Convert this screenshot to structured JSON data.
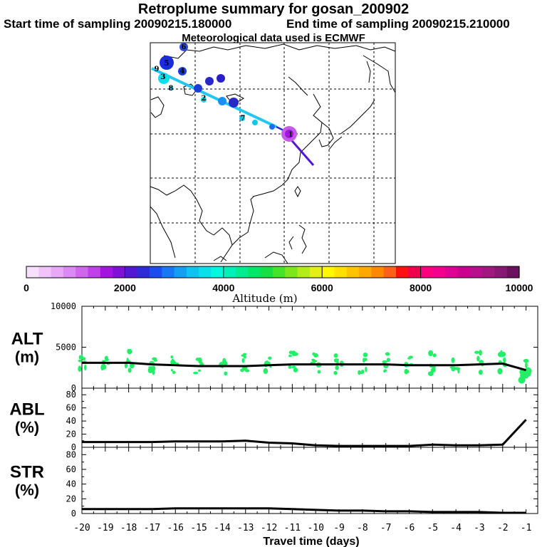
{
  "header": {
    "title": "Retroplume summary for gosan_200902",
    "start_time": "Start time of sampling 20090215.180000",
    "end_time": "End time of sampling 20090215.210000",
    "met_data": "Meteorological data used is ECMWF"
  },
  "colorbar": {
    "colors": [
      "#f7e0fb",
      "#f0c4fa",
      "#e8a7f7",
      "#dc8af3",
      "#d066ee",
      "#c040ea",
      "#a414e0",
      "#8010d8",
      "#5218d4",
      "#2c2cd8",
      "#1a4cf0",
      "#1678f4",
      "#13a0f4",
      "#10c4f0",
      "#0ae0ec",
      "#04f8e0",
      "#00f0b8",
      "#00ec90",
      "#00e868",
      "#14e044",
      "#44e428",
      "#7ce81c",
      "#b4ec18",
      "#e4f014",
      "#fff800",
      "#ffe000",
      "#ffc400",
      "#ffa800",
      "#ff8800",
      "#ff6018",
      "#ff1010",
      "#f0004c",
      "#ff0080",
      "#f4008c",
      "#e00094",
      "#cc0090",
      "#b8108c",
      "#a01880",
      "#881874",
      "#6c1060"
    ],
    "tick_labels": [
      "0",
      "2000",
      "4000",
      "6000",
      "8000",
      "10000"
    ],
    "tick_values": [
      0,
      2000,
      4000,
      6000,
      8000,
      10000
    ],
    "label": "Altitude (m)"
  },
  "map": {
    "trajectory_labels": [
      "1",
      "2",
      "3",
      "4",
      "5",
      "6",
      "7",
      "8",
      "9"
    ]
  },
  "chart_data": [
    {
      "type": "line",
      "panel": "ALT",
      "ylabel_line1": "ALT",
      "ylabel_line2": "(m)",
      "ylim": [
        0,
        10000
      ],
      "tick_labels": [
        "10000",
        "5000",
        "0"
      ],
      "tick_values": [
        10000,
        5000,
        0
      ],
      "x": [
        -20,
        -19,
        -18,
        -17,
        -16,
        -15,
        -14,
        -13,
        -12,
        -11,
        -10,
        -9,
        -8,
        -7,
        -6,
        -5,
        -4,
        -3,
        -2,
        -1
      ],
      "values": [
        3100,
        3100,
        3100,
        2900,
        2800,
        2700,
        2700,
        2700,
        2800,
        2900,
        2900,
        2900,
        2900,
        2900,
        2800,
        2800,
        2800,
        2900,
        3000,
        2200
      ],
      "scatter_color": "#22ee66"
    },
    {
      "type": "line",
      "panel": "ABL",
      "ylabel_line1": "ABL",
      "ylabel_line2": "(%)",
      "ylim": [
        0,
        90
      ],
      "tick_labels": [
        "80",
        "60",
        "40",
        "20",
        "0"
      ],
      "tick_values": [
        80,
        60,
        40,
        20,
        0
      ],
      "x": [
        -20,
        -19,
        -18,
        -17,
        -16,
        -15,
        -14,
        -13,
        -12,
        -11,
        -10,
        -9,
        -8,
        -7,
        -6,
        -5,
        -4,
        -3,
        -2,
        -1
      ],
      "values": [
        8,
        8,
        8,
        8,
        9,
        9,
        9,
        10,
        7,
        6,
        3,
        2,
        2,
        2,
        2,
        4,
        3,
        3,
        4,
        42
      ]
    },
    {
      "type": "line",
      "panel": "STR",
      "ylabel_line1": "STR",
      "ylabel_line2": "(%)",
      "ylim": [
        0,
        90
      ],
      "tick_labels": [
        "80",
        "60",
        "40",
        "20",
        "0"
      ],
      "tick_values": [
        80,
        60,
        40,
        20,
        0
      ],
      "x": [
        -20,
        -19,
        -18,
        -17,
        -16,
        -15,
        -14,
        -13,
        -12,
        -11,
        -10,
        -9,
        -8,
        -7,
        -6,
        -5,
        -4,
        -3,
        -2,
        -1
      ],
      "values": [
        6,
        6,
        6,
        6,
        7,
        7,
        7,
        7,
        7,
        6,
        5,
        4,
        4,
        3,
        3,
        2,
        2,
        2,
        1,
        1
      ]
    }
  ],
  "x_axis": {
    "tick_labels": [
      "-20",
      "-19",
      "-18",
      "-17",
      "-16",
      "-15",
      "-14",
      "-13",
      "-12",
      "-11",
      "-10",
      "-9",
      "-8",
      "-7",
      "-6",
      "-5",
      "-4",
      "-3",
      "-2",
      "-1"
    ],
    "tick_values": [
      -20,
      -19,
      -18,
      -17,
      -16,
      -15,
      -14,
      -13,
      -12,
      -11,
      -10,
      -9,
      -8,
      -7,
      -6,
      -5,
      -4,
      -3,
      -2,
      -1
    ],
    "label": "Travel time (days)",
    "xlim": [
      -20,
      -0.5
    ]
  }
}
